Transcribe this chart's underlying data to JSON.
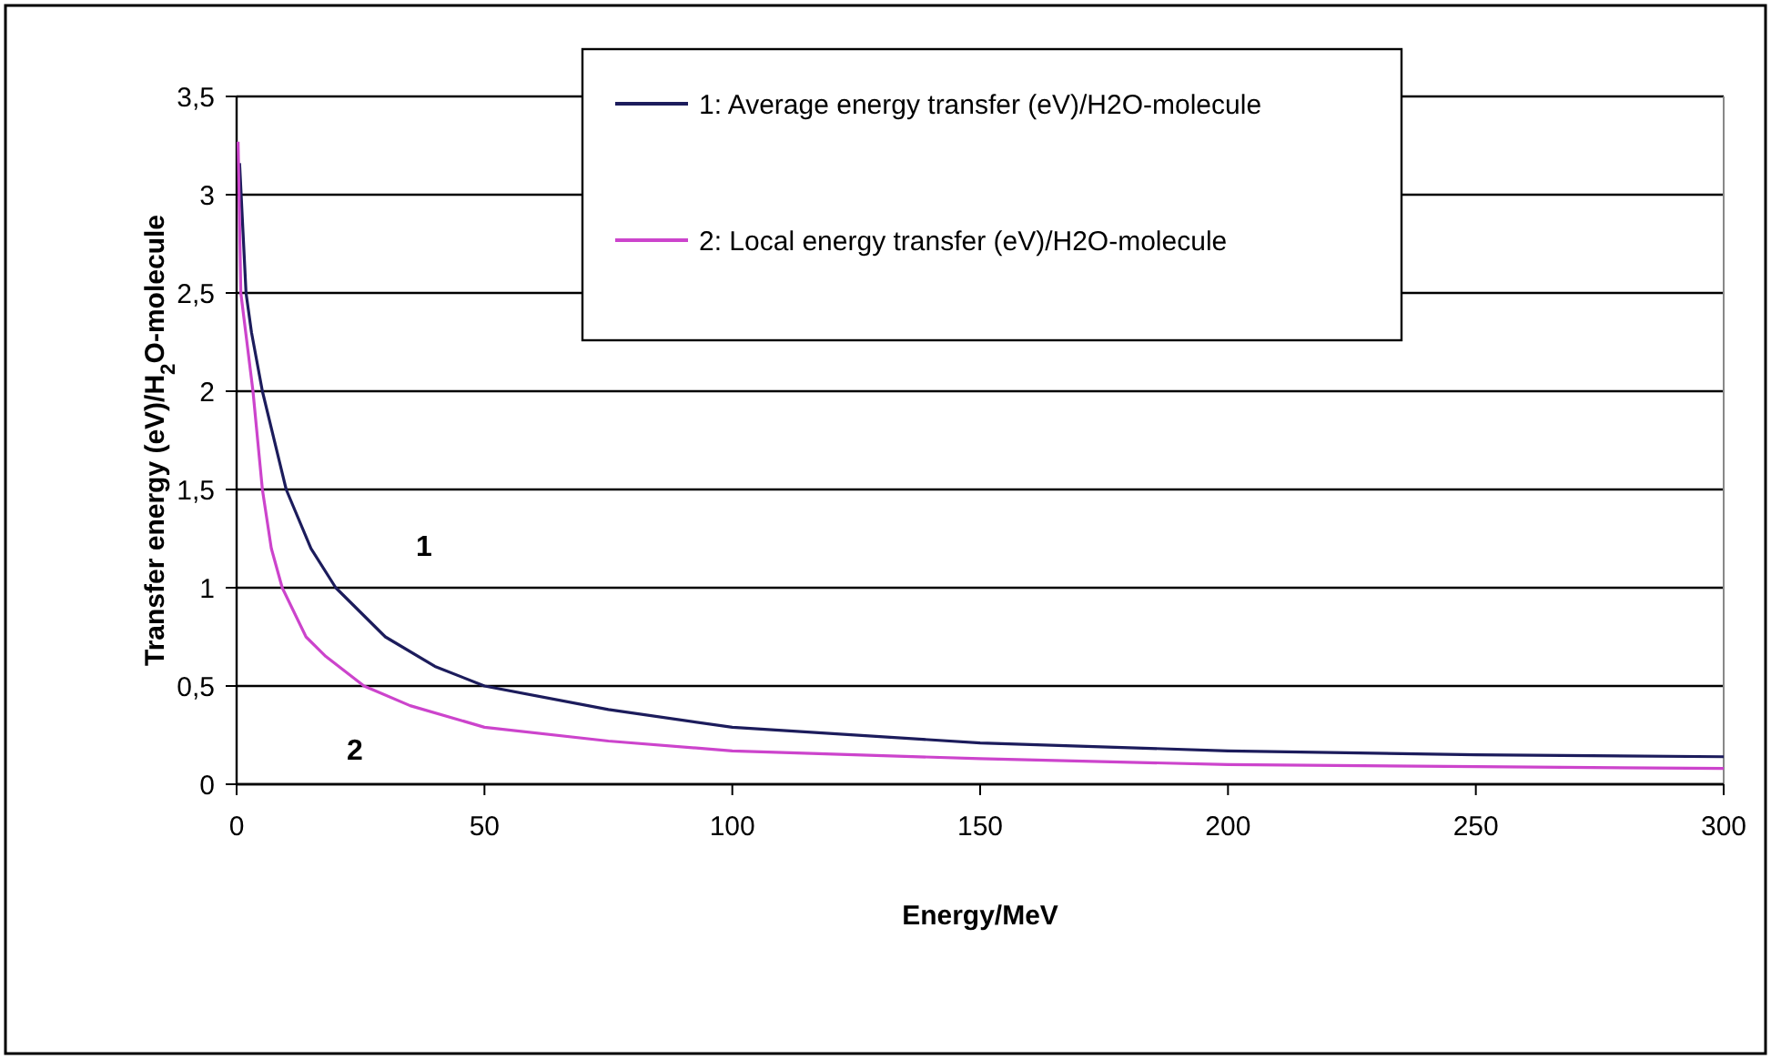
{
  "chart_data": {
    "type": "line",
    "xlabel": "Energy/MeV",
    "ylabel": "Transfer energy (eV)/H$_{2}$O-molecule",
    "xlim": [
      0,
      300
    ],
    "xticks": [
      0,
      50,
      100,
      150,
      200,
      250,
      300
    ],
    "ylim": [
      0,
      3.5
    ],
    "yticks": [
      0,
      {
        "value": 0.5,
        "label": "0,5"
      },
      1,
      {
        "value": 1.5,
        "label": "1,5"
      },
      2,
      {
        "value": 2.5,
        "label": "2,5"
      },
      3,
      {
        "value": 3.5,
        "label": "3,5"
      }
    ],
    "grid": "y",
    "legend": "top",
    "marker": "none",
    "line_style": "solid",
    "series": [
      {
        "name": "1: Average energy transfer (eV)/H2O-molecule",
        "color": "#1c1c5c",
        "x": [
          0.6,
          1.9,
          3,
          5.2,
          10,
          15,
          20,
          30,
          40,
          50,
          75,
          100,
          150,
          200,
          250,
          300
        ],
        "values": [
          3.16,
          2.5,
          2.3,
          2.0,
          1.5,
          1.2,
          1.0,
          0.75,
          0.6,
          0.5,
          0.38,
          0.29,
          0.21,
          0.17,
          0.15,
          0.14
        ]
      },
      {
        "name": "2: Local energy transfer (eV)/H2O-molecule",
        "color": "#cc44cc",
        "x": [
          0.3,
          0.85,
          3.3,
          5.2,
          7,
          9.2,
          14,
          18,
          25.7,
          35,
          50,
          75,
          100,
          150,
          200,
          250,
          300
        ],
        "values": [
          3.27,
          2.5,
          2.0,
          1.5,
          1.2,
          1.0,
          0.75,
          0.65,
          0.5,
          0.4,
          0.29,
          0.22,
          0.17,
          0.13,
          0.1,
          0.09,
          0.08
        ]
      }
    ],
    "annotations": [
      "1",
      "2"
    ]
  }
}
